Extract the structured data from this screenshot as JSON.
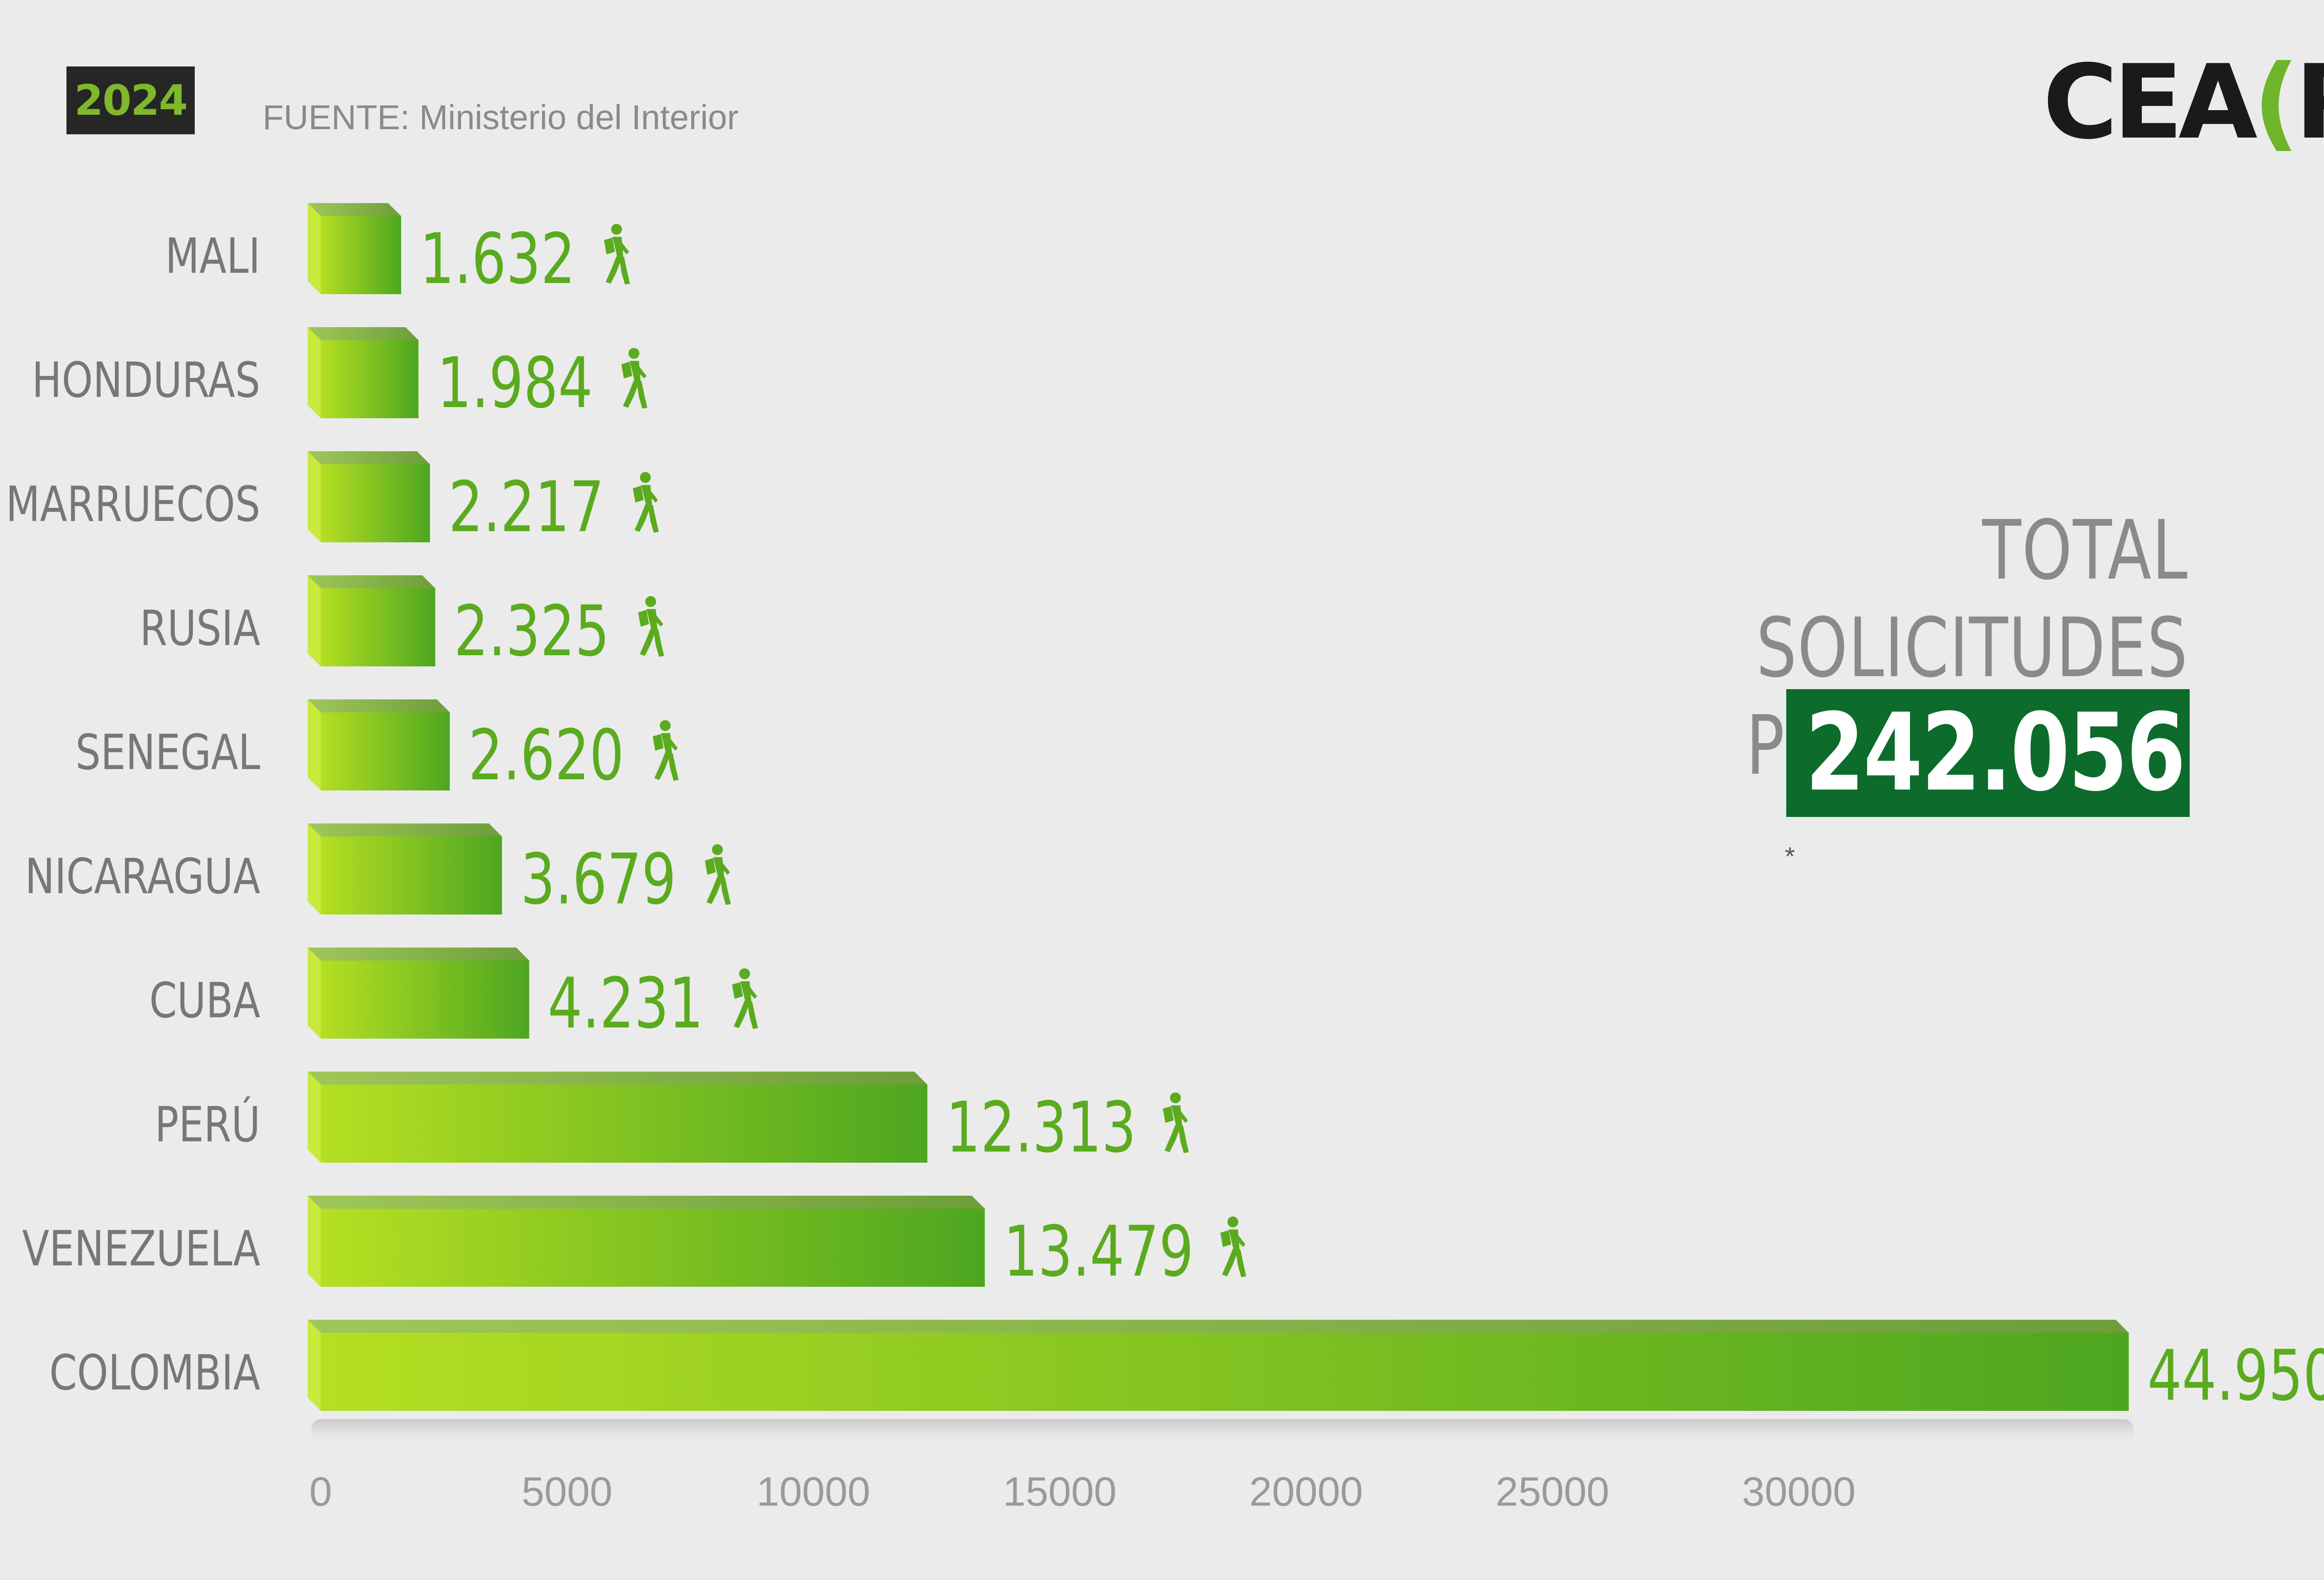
{
  "header": {
    "year": "2024",
    "source": "FUENTE: Ministerio del Interior",
    "logo_main": "CEA",
    "logo_bracket_open": "(",
    "logo_letter": "R",
    "logo_bracket_close": ")"
  },
  "summary": {
    "title_line1": "TOTAL SOLICITUDES",
    "title_line2": "PENDIENTES*",
    "total": "242.056",
    "footnote": "*",
    "icon": "hiker-icon"
  },
  "colors": {
    "accent": "#5aab1e",
    "bar_light": "#b5df22",
    "bar_dark": "#4da620",
    "total_box": "#0d6b2c",
    "badge_bg": "#262626"
  },
  "chart_data": {
    "type": "bar",
    "orientation": "horizontal",
    "title": "",
    "xlabel": "",
    "ylabel": "",
    "categories": [
      "MALI",
      "HONDURAS",
      "MARRUECOS",
      "RUSIA",
      "SENEGAL",
      "NICARAGUA",
      "CUBA",
      "PERÚ",
      "VENEZUELA",
      "COLOMBIA"
    ],
    "values": [
      1632,
      1984,
      2217,
      2325,
      2620,
      3679,
      4231,
      12313,
      13479,
      44950
    ],
    "value_labels": [
      "1.632",
      "1.984",
      "2.217",
      "2.325",
      "2.620",
      "3.679",
      "4.231",
      "12.313",
      "13.479",
      "44.950"
    ],
    "ticks": [
      0,
      5000,
      10000,
      15000,
      20000,
      25000,
      30000
    ],
    "tick_labels": [
      "0",
      "5000",
      "10000",
      "15000",
      "20000",
      "25000",
      "30000"
    ],
    "xlim": [
      0,
      30000
    ],
    "grid": false,
    "legend": "none",
    "value_icon": "hiker-icon"
  }
}
